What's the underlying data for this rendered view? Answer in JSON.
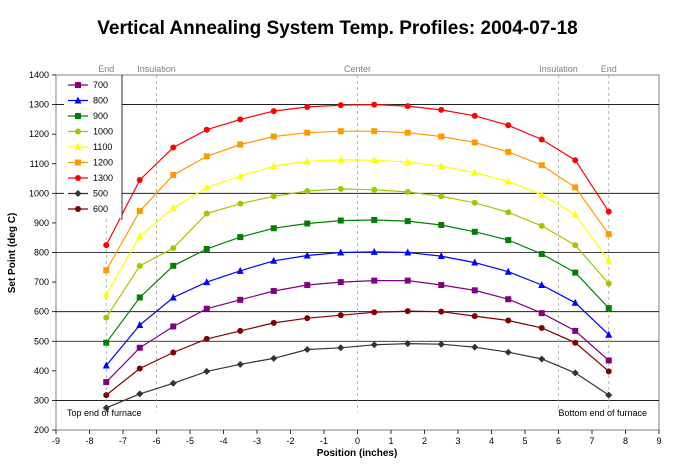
{
  "chart_data": {
    "type": "line",
    "title": "Vertical Annealing System Temp. Profiles: 2004-07-18",
    "xlabel": "Position (inches)",
    "ylabel": "Set Point (deg C)",
    "xlim": [
      -9,
      9
    ],
    "ylim": [
      200,
      1400
    ],
    "xticks": [
      -9,
      -8,
      -7,
      -6,
      -5,
      -4,
      -3,
      -2,
      -1,
      0,
      1,
      2,
      3,
      4,
      5,
      6,
      7,
      8,
      9
    ],
    "yticks": [
      200,
      300,
      400,
      500,
      600,
      700,
      800,
      900,
      1000,
      1100,
      1200,
      1300,
      1400
    ],
    "horizontal_grid": [
      300,
      500,
      600,
      800,
      1000,
      1300
    ],
    "legend_position": "top-left",
    "regions": [
      {
        "label": "End",
        "x": -7.5
      },
      {
        "label": "Insulation",
        "x": -6
      },
      {
        "label": "Center",
        "x": 0
      },
      {
        "label": "Insulation",
        "x": 6
      },
      {
        "label": "End",
        "x": 7.5
      }
    ],
    "annotations": {
      "left": "Top end of furnace",
      "right": "Bottom end of furnace"
    },
    "x": [
      -7.5,
      -6.5,
      -5.5,
      -4.5,
      -3.5,
      -2.5,
      -1.5,
      -0.5,
      0.5,
      1.5,
      2.5,
      3.5,
      4.5,
      5.5,
      6.5,
      7.5
    ],
    "series": [
      {
        "name": "700",
        "color": "#800080",
        "marker": "square",
        "values": [
          362,
          478,
          550,
          610,
          640,
          670,
          690,
          700,
          705,
          705,
          690,
          672,
          642,
          595,
          535,
          435
        ]
      },
      {
        "name": "800",
        "color": "#0000ff",
        "marker": "triangle",
        "values": [
          418,
          555,
          648,
          700,
          738,
          772,
          790,
          800,
          802,
          800,
          788,
          766,
          735,
          690,
          630,
          522
        ]
      },
      {
        "name": "900",
        "color": "#008000",
        "marker": "square",
        "values": [
          495,
          648,
          755,
          812,
          852,
          882,
          898,
          908,
          910,
          906,
          893,
          870,
          842,
          795,
          732,
          612
        ]
      },
      {
        "name": "1000",
        "color": "#99cc00",
        "marker": "circle",
        "values": [
          580,
          755,
          815,
          932,
          965,
          990,
          1008,
          1015,
          1012,
          1005,
          990,
          968,
          936,
          890,
          825,
          695
        ]
      },
      {
        "name": "1100",
        "color": "#ffff00",
        "marker": "triangle",
        "values": [
          658,
          855,
          950,
          1020,
          1058,
          1092,
          1108,
          1113,
          1112,
          1106,
          1092,
          1070,
          1040,
          995,
          928,
          772
        ]
      },
      {
        "name": "1200",
        "color": "#ff9900",
        "marker": "square",
        "values": [
          740,
          940,
          1062,
          1125,
          1165,
          1192,
          1205,
          1210,
          1210,
          1205,
          1192,
          1172,
          1140,
          1095,
          1020,
          862
        ]
      },
      {
        "name": "1300",
        "color": "#ff0000",
        "marker": "circle",
        "values": [
          825,
          1045,
          1155,
          1215,
          1250,
          1278,
          1292,
          1298,
          1300,
          1295,
          1282,
          1262,
          1230,
          1182,
          1112,
          938
        ]
      },
      {
        "name": "500",
        "color": "#333333",
        "marker": "diamond",
        "values": [
          275,
          322,
          358,
          398,
          422,
          442,
          472,
          478,
          488,
          492,
          490,
          480,
          463,
          440,
          393,
          318
        ]
      },
      {
        "name": "600",
        "color": "#800000",
        "marker": "circle",
        "values": [
          318,
          408,
          462,
          508,
          535,
          562,
          578,
          588,
          598,
          602,
          600,
          585,
          570,
          545,
          495,
          398
        ]
      }
    ]
  }
}
